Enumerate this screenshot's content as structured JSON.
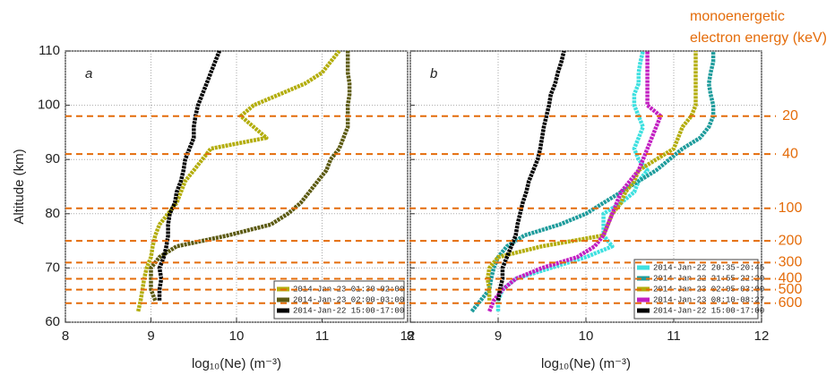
{
  "figure": {
    "annotation": [
      "monoenergetic",
      "electron energy (keV)"
    ],
    "energy_levels": [
      {
        "altitude": 98,
        "energy": 20
      },
      {
        "altitude": 91,
        "energy": 40
      },
      {
        "altitude": 81,
        "energy": 100
      },
      {
        "altitude": 75,
        "energy": 200
      },
      {
        "altitude": 71,
        "energy": 300
      },
      {
        "altitude": 68,
        "energy": 400
      },
      {
        "altitude": 66,
        "energy": 500
      },
      {
        "altitude": 63.5,
        "energy": 600
      }
    ]
  },
  "chart_data": [
    {
      "type": "line",
      "panel_label": "a",
      "xlabel": "log₁₀(Ne) (m⁻³)",
      "ylabel": "Altitude (km)",
      "xlim": [
        8,
        12
      ],
      "xticks": [
        8,
        9,
        10,
        11,
        12
      ],
      "ylim": [
        60,
        110
      ],
      "yticks": [
        60,
        70,
        80,
        90,
        100,
        110
      ],
      "grid": true,
      "legend": "lower right",
      "y": [
        62,
        64,
        66,
        68,
        70,
        72,
        74,
        76,
        78,
        80,
        82,
        84,
        86,
        88,
        90,
        92,
        94,
        96,
        98,
        100,
        102,
        104,
        106,
        108,
        110
      ],
      "series": [
        {
          "name": "2014-Jan-23 01:30-02:00",
          "color": "#b3ad0c",
          "values": [
            8.85,
            8.88,
            8.9,
            8.92,
            8.95,
            9.0,
            9.02,
            9.05,
            9.1,
            9.2,
            9.3,
            9.35,
            9.4,
            9.5,
            9.6,
            9.7,
            10.35,
            10.2,
            10.05,
            10.2,
            10.5,
            10.8,
            11.0,
            11.1,
            11.2
          ]
        },
        {
          "name": "2014-Jan-23 02:00-03:00",
          "color": "#5c5a12",
          "values": [
            null,
            9.05,
            9.0,
            9.0,
            9.0,
            9.1,
            9.3,
            9.9,
            10.4,
            10.6,
            10.75,
            10.85,
            10.95,
            11.05,
            11.1,
            11.2,
            11.25,
            11.3,
            11.3,
            11.3,
            11.32,
            11.32,
            11.3,
            11.3,
            11.3
          ]
        },
        {
          "name": "2014-Jan-22 15:00-17:00",
          "color": "#000000",
          "values": [
            null,
            9.1,
            9.1,
            9.12,
            9.1,
            9.15,
            9.18,
            9.2,
            9.2,
            9.22,
            9.28,
            9.3,
            9.35,
            9.38,
            9.4,
            9.45,
            9.5,
            9.5,
            9.52,
            9.55,
            9.6,
            9.65,
            9.7,
            9.75,
            9.8
          ]
        }
      ]
    },
    {
      "type": "line",
      "panel_label": "b",
      "xlabel": "log₁₀(Ne) (m⁻³)",
      "xlim": [
        8,
        12
      ],
      "xticks": [
        8,
        9,
        10,
        11,
        12
      ],
      "ylim": [
        60,
        110
      ],
      "yticks": [
        60,
        70,
        80,
        90,
        100,
        110
      ],
      "grid": true,
      "legend": "lower right",
      "y": [
        62,
        64,
        66,
        68,
        70,
        72,
        74,
        76,
        78,
        80,
        82,
        84,
        86,
        88,
        90,
        92,
        94,
        96,
        98,
        100,
        102,
        104,
        106,
        108,
        110
      ],
      "series": [
        {
          "name": "2014-Jan-22 20:35-20:45",
          "color": "#3ee0e0",
          "values": [
            9.0,
            9.0,
            9.05,
            9.2,
            9.6,
            10.0,
            10.3,
            10.2,
            10.2,
            10.2,
            10.4,
            10.55,
            10.6,
            10.7,
            10.6,
            10.55,
            10.6,
            10.65,
            10.6,
            10.55,
            10.55,
            10.6,
            10.6,
            10.62,
            10.65
          ]
        },
        {
          "name": "2014-Jan-22 21:55-22:20",
          "color": "#1f9c9c",
          "values": [
            8.7,
            8.8,
            8.9,
            8.92,
            8.95,
            9.0,
            9.1,
            9.3,
            9.7,
            10.0,
            10.2,
            10.4,
            10.6,
            10.8,
            10.95,
            11.1,
            11.3,
            11.4,
            11.45,
            11.45,
            11.42,
            11.4,
            11.42,
            11.45,
            11.45
          ]
        },
        {
          "name": "2014-Jan-23 02:05-03:00",
          "color": "#b3ad0c",
          "values": [
            null,
            8.9,
            8.9,
            8.88,
            8.9,
            9.0,
            9.5,
            10.2,
            10.25,
            10.3,
            10.4,
            10.45,
            10.55,
            10.6,
            10.8,
            11.0,
            11.05,
            11.1,
            11.2,
            11.25,
            11.25,
            11.25,
            11.25,
            11.25,
            11.25
          ]
        },
        {
          "name": "2014-Jan-23 08:10-08:27",
          "color": "#c21fc2",
          "values": [
            8.9,
            8.95,
            9.05,
            9.2,
            9.5,
            9.9,
            10.1,
            10.2,
            10.25,
            10.3,
            10.35,
            10.4,
            10.5,
            10.6,
            10.65,
            10.7,
            10.75,
            10.8,
            10.85,
            10.7,
            10.7,
            10.7,
            10.7,
            10.7,
            10.7
          ]
        },
        {
          "name": "2014-Jan-22 15:00-17:00",
          "color": "#000000",
          "values": [
            null,
            9.0,
            9.02,
            9.05,
            9.05,
            9.1,
            9.15,
            9.2,
            9.22,
            9.25,
            9.28,
            9.32,
            9.35,
            9.4,
            9.45,
            9.48,
            9.5,
            9.52,
            9.55,
            9.58,
            9.6,
            9.65,
            9.68,
            9.72,
            9.75
          ]
        }
      ]
    }
  ]
}
